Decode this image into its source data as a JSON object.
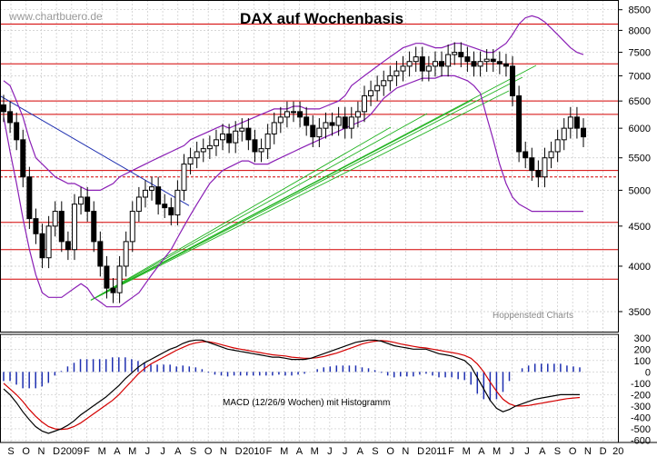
{
  "watermark": "www.chartbuero.de",
  "title": "DAX auf Wochenbasis",
  "source_label": "Hoppenstedt Charts",
  "macd_label": "MACD (12/26/9 Wochen) mit Histogramm",
  "colors": {
    "candle": "#000000",
    "bollinger": "#8a1fb5",
    "resistance": "#d40000",
    "downtrend": "#1e2fb0",
    "uptrend": "#1fb21f",
    "macd": "#000000",
    "signal": "#d40000",
    "histogram": "#1e2fb0",
    "grid": "#c8c8c8"
  },
  "chart_data": [
    {
      "type": "candlestick",
      "title": "DAX auf Wochenbasis",
      "y_scale": "log",
      "ylim": [
        3300,
        8700
      ],
      "y_ticks": [
        3500,
        4000,
        4500,
        5000,
        5500,
        6000,
        6500,
        7000,
        7500,
        8000,
        8500
      ],
      "x_ticks": [
        "S",
        "O",
        "N",
        "D",
        "2009",
        "F",
        "M",
        "A",
        "M",
        "J",
        "J",
        "A",
        "S",
        "O",
        "N",
        "D",
        "2010",
        "F",
        "M",
        "A",
        "M",
        "J",
        "J",
        "A",
        "S",
        "O",
        "N",
        "D",
        "2011",
        "F",
        "M",
        "A",
        "M",
        "J",
        "J",
        "A",
        "S",
        "O",
        "N",
        "D",
        "20"
      ],
      "grid": true,
      "series": [
        {
          "kind": "close",
          "values": [
            6300,
            6100,
            5800,
            5200,
            4600,
            4400,
            4100,
            4500,
            4700,
            4300,
            4200,
            4800,
            4900,
            4700,
            4300,
            4000,
            3750,
            3700,
            4000,
            4300,
            4700,
            4900,
            5000,
            5050,
            4800,
            4750,
            4650,
            5000,
            5400,
            5500,
            5600,
            5650,
            5700,
            5800,
            5900,
            5750,
            5950,
            6000,
            5800,
            5600,
            5650,
            5900,
            6100,
            6200,
            6300,
            6300,
            6200,
            6050,
            5850,
            6000,
            6100,
            6050,
            6200,
            6000,
            6200,
            6300,
            6600,
            6700,
            6800,
            6900,
            7000,
            7100,
            7200,
            7300,
            7400,
            7100,
            7200,
            7300,
            7200,
            7450,
            7500,
            7400,
            7300,
            7200,
            7300,
            7350,
            7300,
            7250,
            7200,
            6600,
            5600,
            5500,
            5300,
            5200,
            5500,
            5600,
            5800,
            6000,
            6200,
            6000,
            5850
          ]
        },
        {
          "kind": "horizontal_levels",
          "values": [
            8150,
            7250,
            6500,
            6250,
            5300,
            5200,
            4550,
            4200,
            3850
          ]
        },
        {
          "kind": "bollinger",
          "upper": [
            6900,
            6800,
            6500,
            6200,
            5800,
            5500,
            5400,
            5300,
            5200,
            5150,
            5100,
            5100,
            5050,
            5000,
            5000,
            5000,
            5050,
            5100,
            5200,
            5250,
            5300,
            5350,
            5400,
            5450,
            5500,
            5550,
            5600,
            5650,
            5700,
            5800,
            5850,
            5900,
            5950,
            6000,
            6050,
            6000,
            6050,
            6100,
            6150,
            6200,
            6250,
            6300,
            6350,
            6350,
            6350,
            6400,
            6400,
            6350,
            6350,
            6350,
            6400,
            6450,
            6500,
            6600,
            6800,
            6900,
            7000,
            7100,
            7200,
            7300,
            7400,
            7500,
            7600,
            7650,
            7700,
            7700,
            7650,
            7600,
            7600,
            7650,
            7700,
            7700,
            7650,
            7600,
            7550,
            7500,
            7500,
            7600,
            7700,
            7900,
            8150,
            8300,
            8350,
            8300,
            8200,
            8050,
            7900,
            7750,
            7600,
            7500,
            7450
          ],
          "lower": [
            6200,
            5600,
            5100,
            4600,
            4200,
            3900,
            3700,
            3650,
            3650,
            3650,
            3700,
            3750,
            3800,
            3750,
            3650,
            3600,
            3550,
            3550,
            3550,
            3600,
            3650,
            3700,
            3800,
            3900,
            4000,
            4100,
            4200,
            4350,
            4500,
            4650,
            4800,
            4950,
            5100,
            5200,
            5300,
            5350,
            5400,
            5450,
            5450,
            5400,
            5400,
            5400,
            5450,
            5500,
            5550,
            5600,
            5650,
            5700,
            5750,
            5800,
            5850,
            5900,
            5950,
            6000,
            6050,
            6100,
            6150,
            6250,
            6400,
            6550,
            6650,
            6750,
            6800,
            6850,
            6900,
            6950,
            6950,
            6950,
            7000,
            7000,
            7000,
            6950,
            6900,
            6800,
            6650,
            6200,
            5800,
            5400,
            5100,
            4900,
            4800,
            4750,
            4700,
            4700,
            4700,
            4700,
            4700,
            4700,
            4700,
            4700,
            4700
          ]
        }
      ]
    },
    {
      "type": "line",
      "title": "MACD (12/26/9 Wochen) mit Histogramm",
      "ylim": [
        -620,
        330
      ],
      "y_ticks": [
        300,
        200,
        100,
        0,
        -100,
        -200,
        -300,
        -400,
        -500,
        -600
      ],
      "series": [
        {
          "name": "MACD",
          "values": [
            -150,
            -200,
            -270,
            -350,
            -420,
            -480,
            -520,
            -540,
            -520,
            -500,
            -470,
            -430,
            -380,
            -340,
            -300,
            -260,
            -220,
            -170,
            -120,
            -60,
            -10,
            40,
            80,
            110,
            140,
            170,
            200,
            220,
            250,
            270,
            280,
            280,
            260,
            240,
            220,
            200,
            190,
            180,
            170,
            160,
            150,
            140,
            130,
            130,
            120,
            110,
            110,
            110,
            120,
            140,
            160,
            180,
            200,
            220,
            240,
            260,
            270,
            280,
            280,
            270,
            250,
            230,
            220,
            210,
            200,
            200,
            200,
            180,
            160,
            150,
            140,
            120,
            100,
            50,
            -50,
            -150,
            -250,
            -320,
            -350,
            -330,
            -300,
            -280,
            -260,
            -240,
            -230,
            -220,
            -210,
            -200,
            -200,
            -200,
            -200
          ]
        },
        {
          "name": "Signal",
          "values": [
            -100,
            -150,
            -200,
            -260,
            -330,
            -390,
            -440,
            -480,
            -500,
            -505,
            -500,
            -480,
            -450,
            -410,
            -370,
            -330,
            -290,
            -250,
            -200,
            -140,
            -80,
            -20,
            30,
            70,
            100,
            130,
            160,
            190,
            215,
            240,
            255,
            265,
            265,
            255,
            240,
            225,
            210,
            200,
            190,
            180,
            170,
            160,
            150,
            145,
            140,
            130,
            125,
            120,
            120,
            125,
            135,
            150,
            165,
            185,
            205,
            225,
            245,
            260,
            270,
            275,
            270,
            260,
            245,
            235,
            225,
            215,
            210,
            200,
            190,
            180,
            170,
            160,
            145,
            120,
            70,
            0,
            -90,
            -170,
            -240,
            -280,
            -300,
            -300,
            -295,
            -285,
            -275,
            -265,
            -255,
            -245,
            -235,
            -230,
            -225
          ]
        }
      ]
    }
  ]
}
